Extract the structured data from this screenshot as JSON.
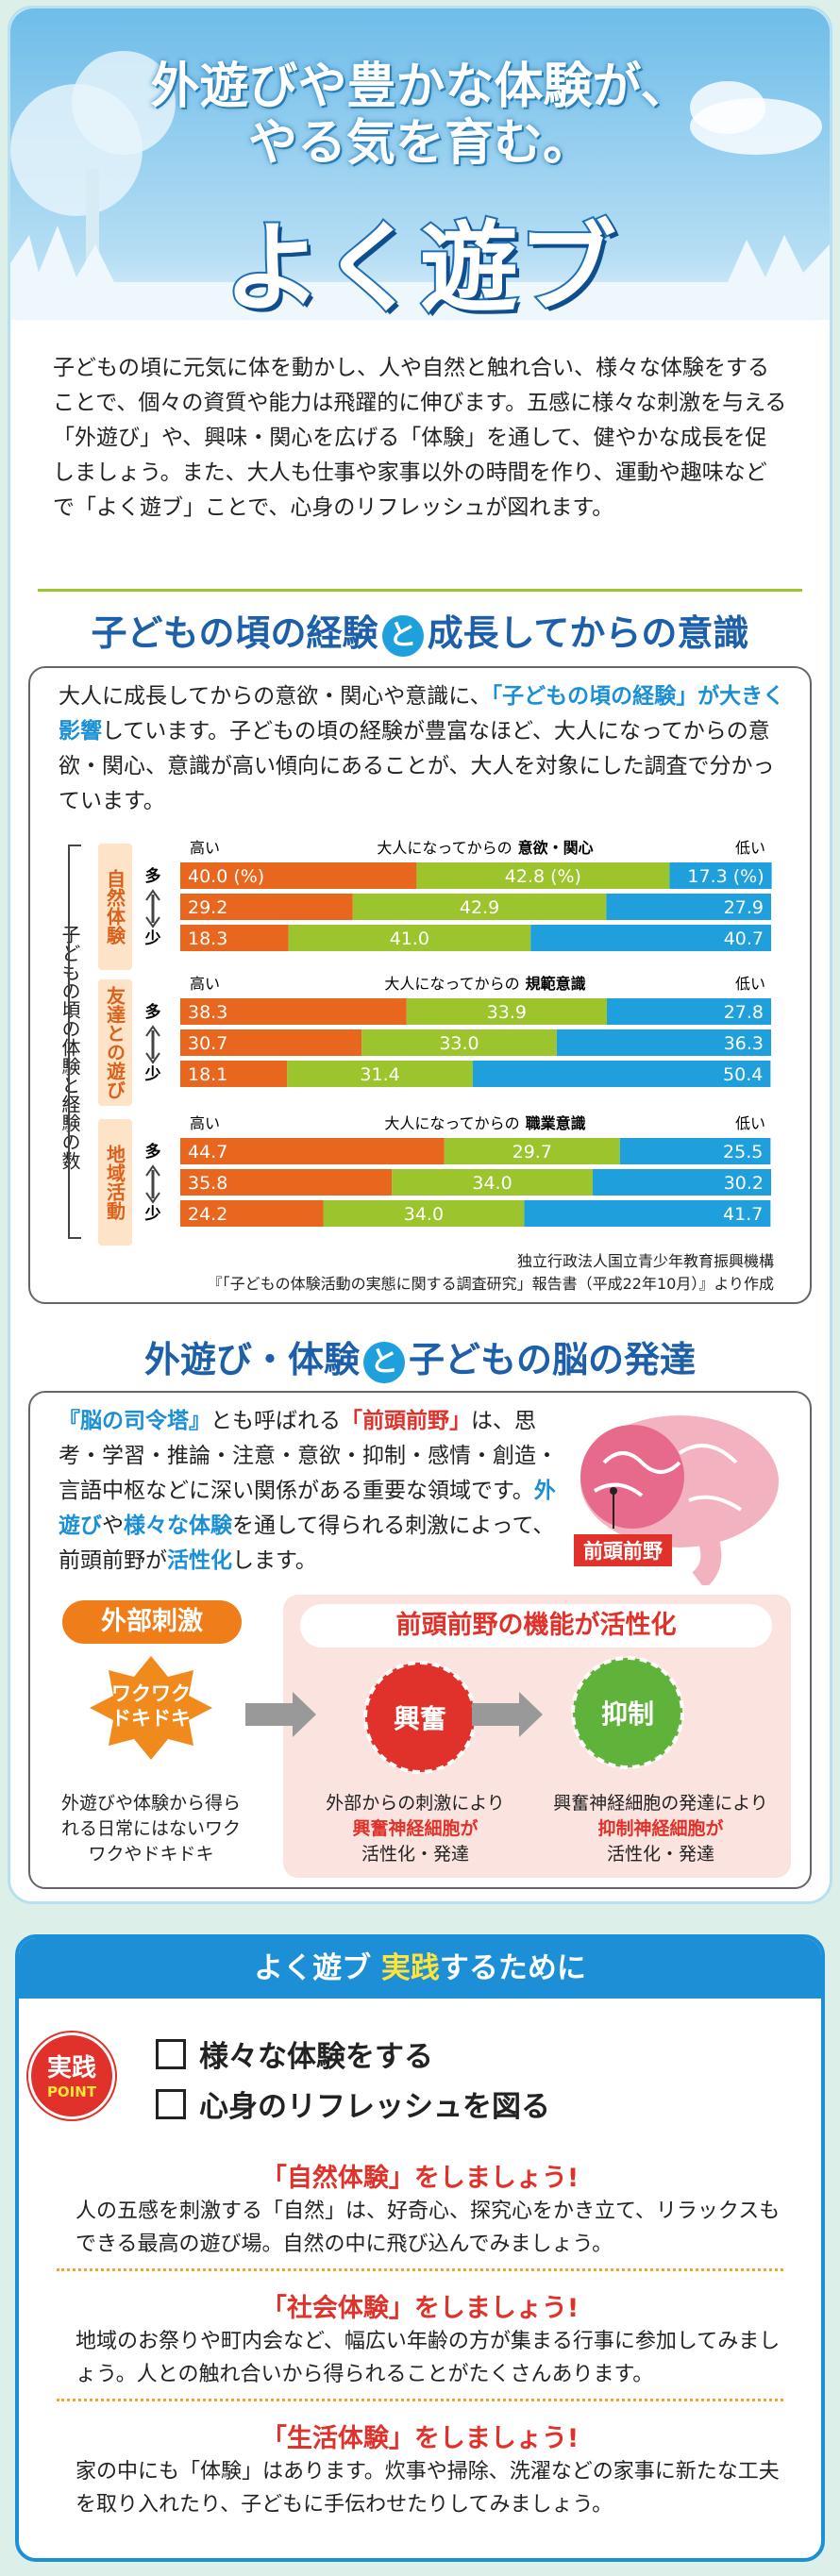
{
  "header": {
    "title_lines": [
      "外遊びや豊かな体験が、",
      "やる気を育む。"
    ],
    "logo": "よく遊ブ"
  },
  "intro": "子どもの頃に元気に体を動かし、人や自然と触れ合い、様々な体験をすることで、個々の資質や能力は飛躍的に伸びます。五感に様々な刺激を与える「外遊び」や、興味・関心を広げる「体験」を通して、健やかな成長を促しましょう。また、大人も仕事や家事以外の時間を作り、運動や趣味などで「よく遊ブ」ことで、心身のリフレッシュが図れます。",
  "section1": {
    "heading_parts": [
      "子どもの頃の経験",
      "と",
      "成長してからの意識"
    ],
    "text_parts": [
      "大人に成長してからの意欲・関心や意識に、",
      "「子どもの頃の経験」が大きく影響",
      "しています。子どもの頃の経験が豊富なほど、大人になってからの意欲・関心、意識が高い傾向にあることが、大人を対象にした調査で分かっています。"
    ],
    "side_label": "子どもの頃の体験と経験の数",
    "source_lines": [
      "独立行政法人国立青少年教育振興機構",
      "『「子どもの体験活動の実態に関する調査研究」報告書（平成22年10月）』より作成"
    ]
  },
  "chart_data": [
    {
      "type": "bar",
      "orientation": "horizontal",
      "stacked": true,
      "group_label": "自然体験",
      "high_label": "高い",
      "low_label": "低い",
      "axis_title_prefix": "大人になってからの",
      "axis_title": "意欲・関心",
      "categories": [
        "多",
        null,
        "少"
      ],
      "xlim": [
        0,
        100
      ],
      "series": [
        {
          "color": "#e8661e",
          "values": [
            40.0,
            29.2,
            18.3
          ],
          "value_labels": [
            "40.0 (%)",
            "29.2",
            "18.3"
          ]
        },
        {
          "color": "#9cc42c",
          "values": [
            42.8,
            42.9,
            41.0
          ],
          "value_labels": [
            "42.8 (%)",
            "42.9",
            "41.0"
          ]
        },
        {
          "color": "#1fa0dc",
          "values": [
            17.3,
            27.9,
            40.7
          ],
          "value_labels": [
            "17.3 (%)",
            "27.9",
            "40.7"
          ]
        }
      ]
    },
    {
      "type": "bar",
      "orientation": "horizontal",
      "stacked": true,
      "group_label": "友達との遊び",
      "high_label": "高い",
      "low_label": "低い",
      "axis_title_prefix": "大人になってからの",
      "axis_title": "規範意識",
      "categories": [
        "多",
        null,
        "少"
      ],
      "xlim": [
        0,
        100
      ],
      "series": [
        {
          "color": "#e8661e",
          "values": [
            38.3,
            30.7,
            18.1
          ],
          "value_labels": [
            "38.3",
            "30.7",
            "18.1"
          ]
        },
        {
          "color": "#9cc42c",
          "values": [
            33.9,
            33.0,
            31.4
          ],
          "value_labels": [
            "33.9",
            "33.0",
            "31.4"
          ]
        },
        {
          "color": "#1fa0dc",
          "values": [
            27.8,
            36.3,
            50.4
          ],
          "value_labels": [
            "27.8",
            "36.3",
            "50.4"
          ]
        }
      ]
    },
    {
      "type": "bar",
      "orientation": "horizontal",
      "stacked": true,
      "group_label": "地域活動",
      "high_label": "高い",
      "low_label": "低い",
      "axis_title_prefix": "大人になってからの",
      "axis_title": "職業意識",
      "categories": [
        "多",
        null,
        "少"
      ],
      "xlim": [
        0,
        100
      ],
      "series": [
        {
          "color": "#e8661e",
          "values": [
            44.7,
            35.8,
            24.2
          ],
          "value_labels": [
            "44.7",
            "35.8",
            "24.2"
          ]
        },
        {
          "color": "#9cc42c",
          "values": [
            29.7,
            34.0,
            34.0
          ],
          "value_labels": [
            "29.7",
            "34.0",
            "34.0"
          ]
        },
        {
          "color": "#1fa0dc",
          "values": [
            25.5,
            30.2,
            41.7
          ],
          "value_labels": [
            "25.5",
            "30.2",
            "41.7"
          ]
        }
      ]
    }
  ],
  "section2": {
    "heading_parts": [
      "外遊び・体験",
      "と",
      "子どもの脳の発達"
    ],
    "text_parts": [
      "『脳の司令塔』",
      "とも呼ばれる",
      "「前頭前野」",
      "は、思考・学習・推論・注意・意欲・抑制・感情・創造・言語中枢などに深い関係がある重要な領域です。",
      "外遊び",
      "や",
      "様々な体験",
      "を通して得られる刺激によって、前頭前野が",
      "活性化",
      "します。"
    ],
    "brain_label": "前頭前野",
    "stimulus_label": "外部刺激",
    "activation_label": "前頭前野の機能が活性化",
    "badge_lines": [
      "ワクワク",
      "ドキドキ"
    ],
    "excite": "興奮",
    "inhibit": "抑制",
    "caption1": "外遊びや体験から得られる日常にはないワクワクやドキドキ",
    "caption2": [
      "外部からの刺激により",
      "興奮神経細胞が",
      "活性化・発達"
    ],
    "caption3": [
      "興奮神経細胞の発達により",
      "抑制神経細胞が",
      "活性化・発達"
    ]
  },
  "practice": {
    "title_parts": [
      "よく遊ブ",
      "実践",
      "するために"
    ],
    "badge": [
      "実践",
      "POINT"
    ],
    "checklist": [
      "様々な体験をする",
      "心身のリフレッシュを図る"
    ],
    "items": [
      {
        "heading": "「自然体験」をしましょう!",
        "text": "人の五感を刺激する「自然」は、好奇心、探究心をかき立て、リラックスもできる最高の遊び場。自然の中に飛び込んでみましょう。"
      },
      {
        "heading": "「社会体験」をしましょう!",
        "text": "地域のお祭りや町内会など、幅広い年齢の方が集まる行事に参加してみましょう。人との触れ合いから得られることがたくさんあります。"
      },
      {
        "heading": "「生活体験」をしましょう!",
        "text": "家の中にも「体験」はあります。炊事や掃除、洗濯などの家事に新たな工夫を取り入れたり、子どもに手伝わせたりしてみましょう。"
      }
    ]
  }
}
